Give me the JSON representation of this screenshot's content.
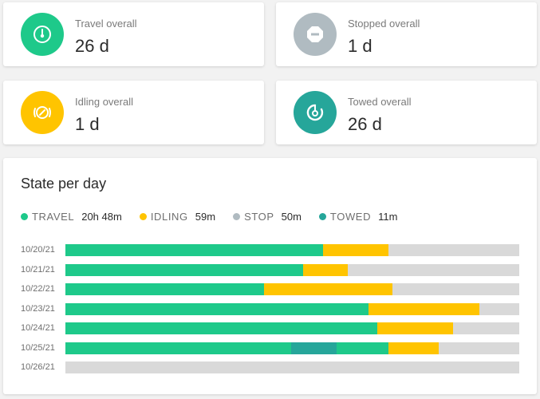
{
  "colors": {
    "travel": "#1ec98a",
    "stopped": "#b0bbc1",
    "idling": "#ffc400",
    "towed": "#26a69a",
    "empty": "#d9d9d9"
  },
  "stats": [
    {
      "key": "travel",
      "label": "Travel overall",
      "value": "26 d",
      "icon": "speedometer-icon"
    },
    {
      "key": "stopped",
      "label": "Stopped overall",
      "value": "1 d",
      "icon": "stop-icon"
    },
    {
      "key": "idling",
      "label": "Idling overall",
      "value": "1 d",
      "icon": "idling-icon"
    },
    {
      "key": "towed",
      "label": "Towed overall",
      "value": "26 d",
      "icon": "towed-icon"
    }
  ],
  "chart": {
    "title": "State per day",
    "legend": [
      {
        "key": "travel",
        "name": "TRAVEL",
        "value": "20h 48m"
      },
      {
        "key": "idling",
        "name": "IDLING",
        "value": "59m"
      },
      {
        "key": "stopped",
        "name": "STOP",
        "value": "50m"
      },
      {
        "key": "towed",
        "name": "TOWED",
        "value": "11m"
      }
    ]
  },
  "chart_data": {
    "type": "bar",
    "orientation": "horizontal",
    "stacked": true,
    "title": "State per day",
    "unit": "fraction of day",
    "categories": [
      "10/20/21",
      "10/21/21",
      "10/22/21",
      "10/23/21",
      "10/24/21",
      "10/25/21",
      "10/26/21"
    ],
    "rows": [
      {
        "day": "10/20/21",
        "segments": [
          {
            "state": "travel",
            "fraction": 0.567
          },
          {
            "state": "idling",
            "fraction": 0.145
          }
        ]
      },
      {
        "day": "10/21/21",
        "segments": [
          {
            "state": "travel",
            "fraction": 0.523
          },
          {
            "state": "idling",
            "fraction": 0.1
          }
        ]
      },
      {
        "day": "10/22/21",
        "segments": [
          {
            "state": "travel",
            "fraction": 0.438
          },
          {
            "state": "idling",
            "fraction": 0.283
          }
        ]
      },
      {
        "day": "10/23/21",
        "segments": [
          {
            "state": "travel",
            "fraction": 0.668
          },
          {
            "state": "idling",
            "fraction": 0.245
          }
        ]
      },
      {
        "day": "10/24/21",
        "segments": [
          {
            "state": "travel",
            "fraction": 0.688
          },
          {
            "state": "idling",
            "fraction": 0.167
          }
        ]
      },
      {
        "day": "10/25/21",
        "segments": [
          {
            "state": "travel",
            "fraction": 0.497
          },
          {
            "state": "towed",
            "fraction": 0.1
          },
          {
            "state": "travel",
            "fraction": 0.114
          },
          {
            "state": "idling",
            "fraction": 0.112
          }
        ]
      },
      {
        "day": "10/26/21",
        "segments": []
      }
    ],
    "legend_position": "top-left"
  }
}
